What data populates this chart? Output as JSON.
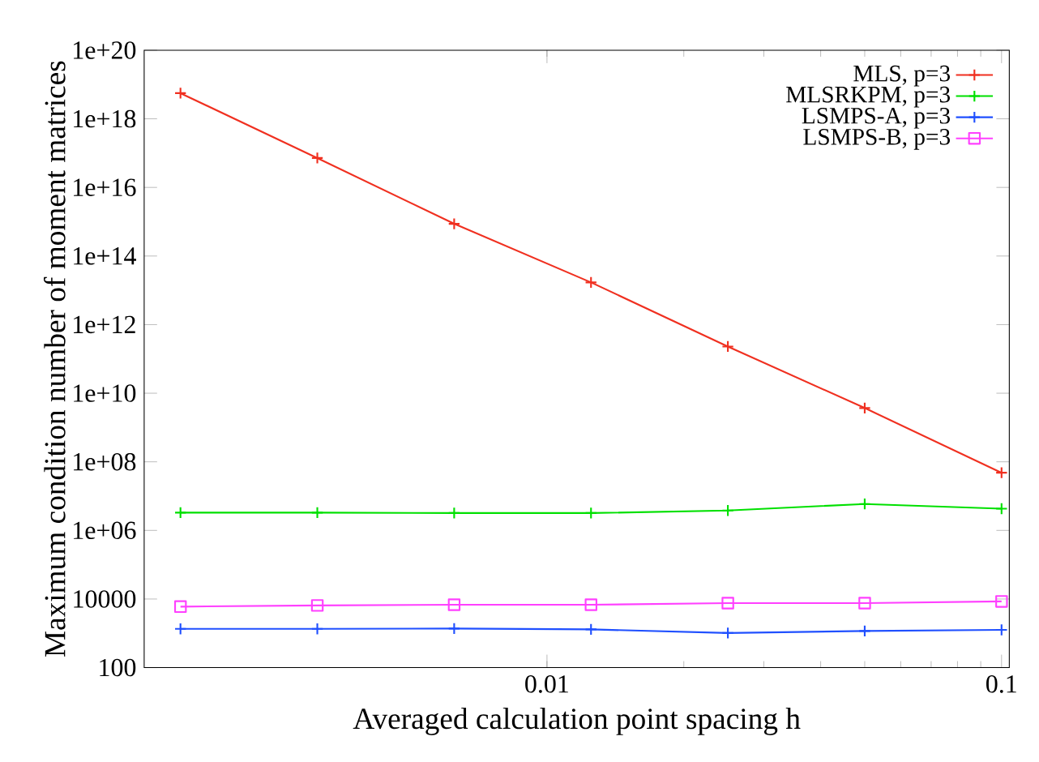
{
  "chart_data": {
    "type": "line",
    "xlabel": "Averaged calculation point spacing h",
    "ylabel": "Maximum condition number of moment matrices",
    "x": [
      0.0015625,
      0.003125,
      0.00625,
      0.0125,
      0.025,
      0.05,
      0.1
    ],
    "series": [
      {
        "name": "MLS, p=3",
        "color": "#f03020",
        "marker": "cross",
        "values": [
          5.6e+18,
          7.2e+16,
          870000000000000.0,
          17000000000000.0,
          230000000000.0,
          3700000000.0,
          48000000.0
        ]
      },
      {
        "name": "MLSRKPM, p=3",
        "color": "#00e000",
        "marker": "cross",
        "values": [
          3300000.0,
          3300000.0,
          3200000.0,
          3200000.0,
          3800000.0,
          5900000.0,
          4300000.0
        ]
      },
      {
        "name": "LSMPS-A, p=3",
        "color": "#2050ff",
        "marker": "cross",
        "values": [
          1350,
          1350,
          1380,
          1300,
          1020,
          1170,
          1260
        ]
      },
      {
        "name": "LSMPS-B, p=3",
        "color": "#ff40ff",
        "marker": "square",
        "values": [
          6000,
          6500,
          6800,
          6800,
          7600,
          7600,
          8500
        ]
      }
    ],
    "log": "xy",
    "xlim": [
      0.0013,
      0.104
    ],
    "ylim": [
      100,
      1e+20
    ],
    "xticks": [
      0.01,
      0.1
    ],
    "yticks": [
      {
        "value": 100,
        "label": "100"
      },
      {
        "value": 10000,
        "label": "10000"
      },
      {
        "value": 1000000.0,
        "label": "1e+06"
      },
      {
        "value": 100000000.0,
        "label": "1e+08"
      },
      {
        "value": 10000000000.0,
        "label": "1e+10"
      },
      {
        "value": 1000000000000.0,
        "label": "1e+12"
      },
      {
        "value": 100000000000000.0,
        "label": "1e+14"
      },
      {
        "value": 1e+16,
        "label": "1e+16"
      },
      {
        "value": 1e+18,
        "label": "1e+18"
      },
      {
        "value": 1e+20,
        "label": "1e+20"
      }
    ],
    "legend": "top right",
    "line_style": "solid"
  }
}
